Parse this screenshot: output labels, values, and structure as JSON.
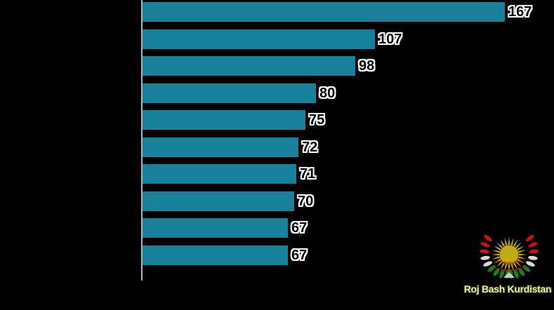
{
  "chart_data": {
    "type": "bar",
    "orientation": "horizontal",
    "title": "",
    "categories": [
      "",
      "",
      "",
      "",
      "",
      "",
      "",
      "",
      "",
      ""
    ],
    "category_labels_visible": false,
    "values": [
      167,
      107,
      98,
      80,
      75,
      72,
      71,
      70,
      67,
      67
    ],
    "legend": "none",
    "grid": "off",
    "bar_color": "#17819C",
    "axis_line_color": "#B3B3B3",
    "background_color": "#000000",
    "value_label_color": "#000000",
    "value_label_outline_color": "#FFFFFF"
  },
  "watermark": {
    "text": "Roj Bash Kurdistan",
    "text_color": "#E8E9BE",
    "emblem_arc_text": "ROJ BASH KURDISTAN",
    "emblem_colors": {
      "sun": "#C3A912",
      "wreath_red": "#C41414",
      "wreath_white": "#D9D9D9",
      "wreath_green": "#1E7C1E",
      "arc_text": "#C01000",
      "base_triangle": "#C8C8C8"
    }
  }
}
